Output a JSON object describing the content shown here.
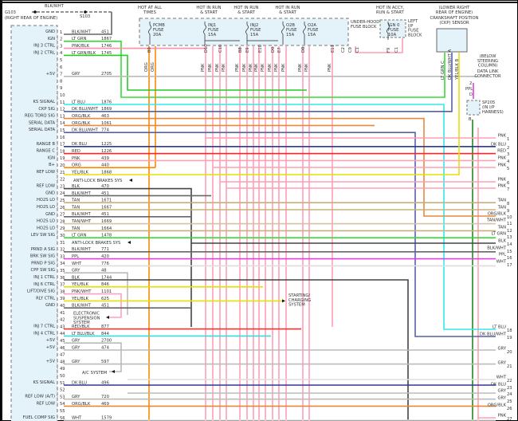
{
  "ground": {
    "id": "G103",
    "location": "(RIGHT REAR OF ENGINE)",
    "splice": "S103",
    "wire": "BLK/WHT"
  },
  "fuse_block": {
    "name": "UNDER-HOOD FUSE BLOCK",
    "hot_labels": [
      "HOT AT ALL TIMES",
      "HOT IN RUN & START",
      "HOT IN RUN & START",
      "HOT IN RUN & START"
    ],
    "fuses": [
      {
        "name": "PCMB",
        "label": "FUSE",
        "rating": "20A"
      },
      {
        "name": "INJ1",
        "label": "FUSE",
        "rating": "15A"
      },
      {
        "name": "INJ2",
        "label": "FUSE",
        "rating": "15A"
      },
      {
        "name": "O2B",
        "label": "FUSE",
        "rating": "15A"
      },
      {
        "name": "O2A",
        "label": "FUSE",
        "rating": "15A"
      }
    ]
  },
  "ip_fuse_block": {
    "hot_label": "HOT IN ACCY, RUN & START",
    "fuse": "IGN 0",
    "label": "FUSE",
    "rating": "10A",
    "name": "LEFT I/P FUSE BLOCK"
  },
  "ckp_sensor": {
    "location": "(LOWER RIGHT REAR OF ENGINE)",
    "name": "CRANKSHAFT POSITION (CKP) SENSOR",
    "pins": [
      "LT GRN C",
      "DK BLU/WHT A",
      "YEL/BLK B"
    ]
  },
  "dlc": {
    "location": "(BELOW STEERING COLUMN)",
    "name": "DATA LINK CONNECTOR",
    "pin": "2",
    "wire": "PPL",
    "term": "D"
  },
  "splice_pack": {
    "name": "SP205",
    "location": "(IN I/P HARNESS)",
    "term": "B"
  },
  "terminals": [
    "B9",
    "D10",
    "C10",
    "B8",
    "E9",
    "E10",
    "D9",
    "E7",
    "D8",
    "E11",
    "C2",
    "C9",
    "C1",
    "F9",
    "C1"
  ],
  "vertical_wires": [
    "ORG",
    "ORG",
    "PNK",
    "PNK",
    "PNK",
    "PNK",
    "PNK",
    "PNK",
    "PNK",
    "PNK",
    "PNK",
    "PNK",
    "PNK",
    "PNK",
    "PNK",
    "PNK",
    "PNK"
  ],
  "pin_labels": [
    {
      "pin": 1,
      "label": "GND"
    },
    {
      "pin": 2,
      "label": "IGN"
    },
    {
      "pin": 3,
      "label": "INJ 3 CTRL"
    },
    {
      "pin": 4,
      "label": "INJ 2 CTRL"
    },
    {
      "pin": 7,
      "label": "+5V"
    },
    {
      "pin": 11,
      "label": "KS SIGNAL"
    },
    {
      "pin": 12,
      "label": "CKP SIG"
    },
    {
      "pin": 13,
      "label": "REG TORQ SIG"
    },
    {
      "pin": 14,
      "label": "SERIAL DATA"
    },
    {
      "pin": 15,
      "label": "SERIAL DATA"
    },
    {
      "pin": 17,
      "label": "RANGE B"
    },
    {
      "pin": 18,
      "label": "RANGE C"
    },
    {
      "pin": 19,
      "label": "IGN"
    },
    {
      "pin": 20,
      "label": "B+"
    },
    {
      "pin": 21,
      "label": "REF LOW"
    },
    {
      "pin": 23,
      "label": "REF LOW"
    },
    {
      "pin": 24,
      "label": "GND"
    },
    {
      "pin": 25,
      "label": "HO2S LO"
    },
    {
      "pin": 26,
      "label": "HO2S LO"
    },
    {
      "pin": 27,
      "label": "GND"
    },
    {
      "pin": 28,
      "label": "HO2S LO"
    },
    {
      "pin": 29,
      "label": "HO2S LO"
    },
    {
      "pin": 30,
      "label": "LEV SW SIG"
    },
    {
      "pin": 32,
      "label": "PRND A SIG"
    },
    {
      "pin": 33,
      "label": "BRK SW SIG"
    },
    {
      "pin": 34,
      "label": "PRND P SIG"
    },
    {
      "pin": 35,
      "label": "CPP SW SIG"
    },
    {
      "pin": 36,
      "label": "INJ 1 CTRL"
    },
    {
      "pin": 37,
      "label": "INJ 6 CTRL"
    },
    {
      "pin": 38,
      "label": "LIFT/DIVE SIG"
    },
    {
      "pin": 39,
      "label": "RLY CTRL"
    },
    {
      "pin": 40,
      "label": "GND"
    },
    {
      "pin": 43,
      "label": "INJ 7 CTRL"
    },
    {
      "pin": 44,
      "label": "INJ 4 CTRL"
    },
    {
      "pin": 45,
      "label": "+5V"
    },
    {
      "pin": 46,
      "label": "+5V"
    },
    {
      "pin": 48,
      "label": "+5V"
    },
    {
      "pin": 51,
      "label": "KS SIGNAL"
    },
    {
      "pin": 53,
      "label": "REF LOW (A/T)"
    },
    {
      "pin": 54,
      "label": "REF LOW"
    },
    {
      "pin": 56,
      "label": "FUEL COMP SIG"
    }
  ],
  "wires": [
    {
      "pin": 1,
      "color": "BLK/WHT",
      "circuit": "451"
    },
    {
      "pin": 2,
      "color": "LT GRN",
      "circuit": "1867"
    },
    {
      "pin": 3,
      "color": "PNK/BLK",
      "circuit": "1746"
    },
    {
      "pin": 4,
      "color": "LT GRN/BLK",
      "circuit": "1745"
    },
    {
      "pin": 7,
      "color": "GRY",
      "circuit": "2705"
    },
    {
      "pin": 11,
      "color": "LT BLU",
      "circuit": "1876"
    },
    {
      "pin": 12,
      "color": "DK BLU/WHT",
      "circuit": "1869"
    },
    {
      "pin": 13,
      "color": "ORG/BLK",
      "circuit": "463"
    },
    {
      "pin": 14,
      "color": "ORG/BLK",
      "circuit": "1061"
    },
    {
      "pin": 15,
      "color": "DK BLU/WHT",
      "circuit": "774"
    },
    {
      "pin": 17,
      "color": "DK BLU",
      "circuit": "1225"
    },
    {
      "pin": 18,
      "color": "RED",
      "circuit": "1226"
    },
    {
      "pin": 19,
      "color": "PNK",
      "circuit": "439"
    },
    {
      "pin": 20,
      "color": "ORG",
      "circuit": "440"
    },
    {
      "pin": 21,
      "color": "YEL/BLK",
      "circuit": "1868"
    },
    {
      "pin": 23,
      "color": "BLK",
      "circuit": "470"
    },
    {
      "pin": 24,
      "color": "BLK/WHT",
      "circuit": "451"
    },
    {
      "pin": 25,
      "color": "TAN",
      "circuit": "1671"
    },
    {
      "pin": 26,
      "color": "TAN",
      "circuit": "1667"
    },
    {
      "pin": 27,
      "color": "BLK/WHT",
      "circuit": "451"
    },
    {
      "pin": 28,
      "color": "TAN/WHT",
      "circuit": "1669"
    },
    {
      "pin": 29,
      "color": "TAN",
      "circuit": "1664"
    },
    {
      "pin": 30,
      "color": "LT GRN",
      "circuit": "1478"
    },
    {
      "pin": 32,
      "color": "BLK/WHT",
      "circuit": "771"
    },
    {
      "pin": 33,
      "color": "PPL",
      "circuit": "420"
    },
    {
      "pin": 34,
      "color": "WHT",
      "circuit": "776"
    },
    {
      "pin": 35,
      "color": "GRY",
      "circuit": "48"
    },
    {
      "pin": 36,
      "color": "BLK",
      "circuit": "1744"
    },
    {
      "pin": 37,
      "color": "YEL/BLK",
      "circuit": "846"
    },
    {
      "pin": 38,
      "color": "PNK/WHT",
      "circuit": "1101"
    },
    {
      "pin": 39,
      "color": "YEL/BLK",
      "circuit": "625"
    },
    {
      "pin": 40,
      "color": "BLK/WHT",
      "circuit": "451"
    },
    {
      "pin": 43,
      "color": "RED/BLK",
      "circuit": "877"
    },
    {
      "pin": 44,
      "color": "LT BLU/BLK",
      "circuit": "844"
    },
    {
      "pin": 45,
      "color": "GRY",
      "circuit": "2700"
    },
    {
      "pin": 46,
      "color": "GRY",
      "circuit": "474"
    },
    {
      "pin": 48,
      "color": "GRY",
      "circuit": "597"
    },
    {
      "pin": 51,
      "color": "DK BLU",
      "circuit": "496"
    },
    {
      "pin": 53,
      "color": "GRY",
      "circuit": "720"
    },
    {
      "pin": 54,
      "color": "ORG/BLK",
      "circuit": "469"
    },
    {
      "pin": 56,
      "color": "WHT",
      "circuit": "1579"
    }
  ],
  "references": [
    {
      "pin": 22,
      "text": "ANTI-LOCK BRAKES SYS"
    },
    {
      "pin": 31,
      "text": "ANTI-LOCK BRAKES SYS"
    },
    {
      "pin": 41,
      "text": "ELECTRONIC SUSPENSION SYSTEM"
    },
    {
      "pin": 49,
      "text": "A/C SYSTEM"
    },
    {
      "pin": 39,
      "text": "STARTING/ CHARGING SYSTEM"
    }
  ],
  "right_terminals": [
    {
      "num": "1",
      "color": "PNK"
    },
    {
      "num": "2",
      "color": "DK BLU"
    },
    {
      "num": "3",
      "color": "RED"
    },
    {
      "num": "4",
      "color": "PNK"
    },
    {
      "num": "5",
      "color": "PNK"
    },
    {
      "num": "6",
      "color": "PNK"
    },
    {
      "num": "7",
      "color": "PNK"
    },
    {
      "num": "8",
      "color": "TAN"
    },
    {
      "num": "9",
      "color": "TAN"
    },
    {
      "num": "10",
      "color": "ORG/BLK"
    },
    {
      "num": "11",
      "color": "TAN/WHT"
    },
    {
      "num": "12",
      "color": "TAN"
    },
    {
      "num": "13",
      "color": "LT GRN"
    },
    {
      "num": "14",
      "color": "BLK"
    },
    {
      "num": "15",
      "color": "BLK/WHT"
    },
    {
      "num": "16",
      "color": "PPL"
    },
    {
      "num": "17",
      "color": "WHT"
    },
    {
      "num": "18",
      "color": "LT BLU"
    },
    {
      "num": "19",
      "color": "DK BLU/WHT"
    },
    {
      "num": "20",
      "color": "GRY"
    },
    {
      "num": "21",
      "color": "GRY"
    },
    {
      "num": "22",
      "color": "WHT"
    },
    {
      "num": "23",
      "color": "DK BLU"
    },
    {
      "num": "24",
      "color": "GRY"
    },
    {
      "num": "25",
      "color": "GRY"
    },
    {
      "num": "26",
      "color": "ORG/BLK"
    },
    {
      "num": "27",
      "color": "PNK"
    }
  ],
  "wire_colors": {
    "BLK/WHT": "#666666",
    "LT GRN": "#33dd33",
    "PNK/BLK": "#ff8fa8",
    "LT GRN/BLK": "#22cc22",
    "GRY": "#bbbbbb",
    "LT BLU": "#33e8e8",
    "DK BLU/WHT": "#5560a8",
    "ORG/BLK": "#e8893a",
    "DK BLU": "#2a3a90",
    "RED": "#ff2222",
    "PNK": "#ff9fb5",
    "ORG": "#ff8800",
    "YEL/BLK": "#e6e000",
    "BLK": "#444444",
    "TAN": "#c8b07a",
    "TAN/WHT": "#d4c4a4",
    "PPL": "#e040e0",
    "WHT": "#dddddd",
    "PNK/WHT": "#ffa0c0",
    "RED/BLK": "#ee3333",
    "LT BLU/BLK": "#33dddd",
    "DK GRN": "#228822"
  }
}
